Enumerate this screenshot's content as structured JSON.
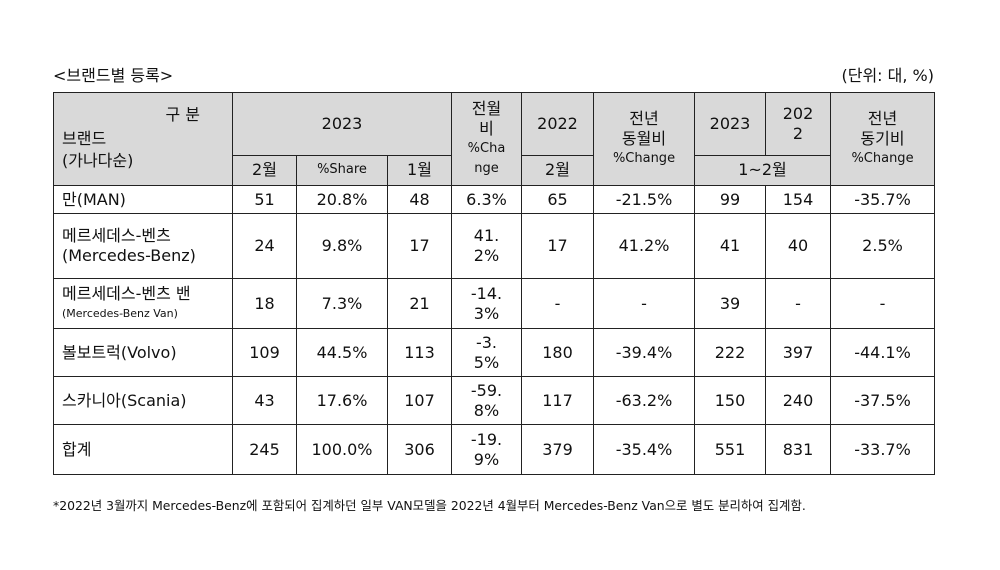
{
  "caption": {
    "title": "<브랜드별 등록>",
    "unit": "(단위: 대, %)"
  },
  "header": {
    "gubun": "구 분",
    "brand": "브랜드",
    "brand_sub": "(가나다순)",
    "y2023": "2023",
    "mom_top": "전월",
    "mom_mid": "비",
    "mom_pct": "%Cha",
    "mom_pct2": "nge",
    "y2022": "2022",
    "yoy_top": "전년",
    "yoy_mid": "동월비",
    "yoy_pct": "%Change",
    "cum2023": "2023",
    "cum2022a": "202",
    "cum2022b": "2",
    "ytd_top": "전년",
    "ytd_mid": "동기비",
    "ytd_pct": "%Change",
    "feb": "2월",
    "share": "%Share",
    "jan": "1월",
    "feb2022": "2월",
    "janfeb": "1~2월"
  },
  "rows": [
    {
      "brand": "만(MAN)",
      "brand_sub": "",
      "feb": "51",
      "share": "20.8%",
      "jan": "48",
      "mom": "6.3%",
      "feb22": "65",
      "yoy": "-21.5%",
      "c23": "99",
      "c22": "154",
      "ytd": "-35.7%"
    },
    {
      "brand": "메르세데스-벤츠",
      "brand_sub": "(Mercedes-Benz)",
      "feb": "24",
      "share": "9.8%",
      "jan": "17",
      "mom": "41.2%",
      "feb22": "17",
      "yoy": "41.2%",
      "c23": "41",
      "c22": "40",
      "ytd": "2.5%"
    },
    {
      "brand": "메르세데스-벤츠 밴",
      "brand_sub": "(Mercedes-Benz Van)",
      "feb": "18",
      "share": "7.3%",
      "jan": "21",
      "mom": "-14.3%",
      "feb22": "-",
      "yoy": "-",
      "c23": "39",
      "c22": "-",
      "ytd": "-"
    },
    {
      "brand": "볼보트럭(Volvo)",
      "brand_sub": "",
      "feb": "109",
      "share": "44.5%",
      "jan": "113",
      "mom": "-3.5%",
      "feb22": "180",
      "yoy": "-39.4%",
      "c23": "222",
      "c22": "397",
      "ytd": "-44.1%"
    },
    {
      "brand": "스카니아(Scania)",
      "brand_sub": "",
      "feb": "43",
      "share": "17.6%",
      "jan": "107",
      "mom": "-59.8%",
      "feb22": "117",
      "yoy": "-63.2%",
      "c23": "150",
      "c22": "240",
      "ytd": "-37.5%"
    },
    {
      "brand": "합계",
      "brand_sub": "",
      "feb": "245",
      "share": "100.0%",
      "jan": "306",
      "mom": "-19.9%",
      "feb22": "379",
      "yoy": "-35.4%",
      "c23": "551",
      "c22": "831",
      "ytd": "-33.7%"
    }
  ],
  "footnote": "*2022년 3월까지 Mercedes-Benz에 포함되어 집계하던 일부 VAN모델을 2022년 4월부터 Mercedes-Benz Van으로 별도 분리하여 집계함."
}
